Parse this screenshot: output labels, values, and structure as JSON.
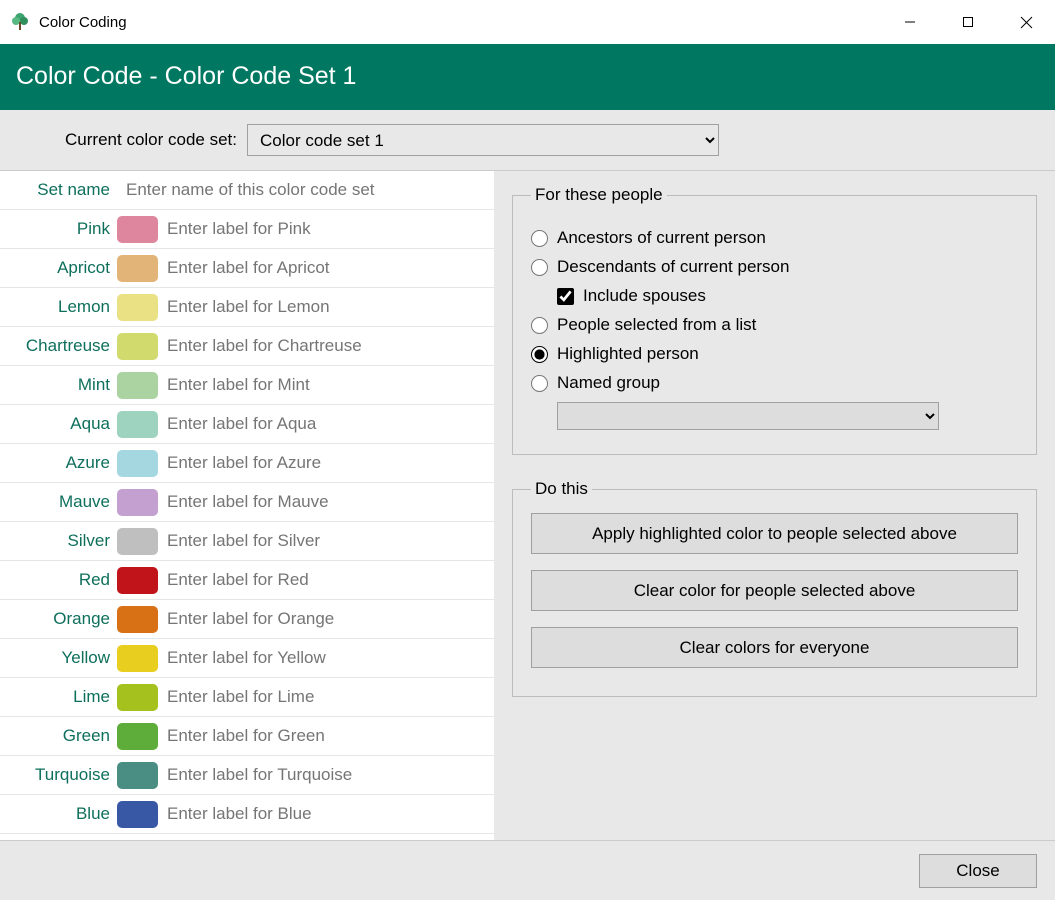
{
  "window": {
    "title": "Color Coding"
  },
  "header": {
    "title": "Color Code - Color Code Set 1"
  },
  "selector": {
    "label": "Current color code set:",
    "value": "Color code set 1"
  },
  "setNameRow": {
    "label": "Set name",
    "placeholder": "Enter name of this color code set"
  },
  "colors": [
    {
      "name": "Pink",
      "hex": "#dd869d",
      "placeholder": "Enter label for Pink"
    },
    {
      "name": "Apricot",
      "hex": "#e3b478",
      "placeholder": "Enter label for Apricot"
    },
    {
      "name": "Lemon",
      "hex": "#e9e183",
      "placeholder": "Enter label for Lemon"
    },
    {
      "name": "Chartreuse",
      "hex": "#d0da6d",
      "placeholder": "Enter label for Chartreuse"
    },
    {
      "name": "Mint",
      "hex": "#abd3a2",
      "placeholder": "Enter label for Mint"
    },
    {
      "name": "Aqua",
      "hex": "#9dd3bf",
      "placeholder": "Enter label for Aqua"
    },
    {
      "name": "Azure",
      "hex": "#a4d7df",
      "placeholder": "Enter label for Azure"
    },
    {
      "name": "Mauve",
      "hex": "#c3a0cf",
      "placeholder": "Enter label for Mauve"
    },
    {
      "name": "Silver",
      "hex": "#bfbfbf",
      "placeholder": "Enter label for Silver"
    },
    {
      "name": "Red",
      "hex": "#c0131a",
      "placeholder": "Enter label for Red"
    },
    {
      "name": "Orange",
      "hex": "#d87116",
      "placeholder": "Enter label for Orange"
    },
    {
      "name": "Yellow",
      "hex": "#e7ce1f",
      "placeholder": "Enter label for Yellow"
    },
    {
      "name": "Lime",
      "hex": "#a5c11e",
      "placeholder": "Enter label for Lime"
    },
    {
      "name": "Green",
      "hex": "#5ead3a",
      "placeholder": "Enter label for Green"
    },
    {
      "name": "Turquoise",
      "hex": "#4a8d82",
      "placeholder": "Enter label for Turquoise"
    },
    {
      "name": "Blue",
      "hex": "#3858a6",
      "placeholder": "Enter label for Blue"
    }
  ],
  "forThesePeople": {
    "legend": "For these people",
    "options": {
      "ancestors": {
        "label": "Ancestors of current person",
        "checked": false
      },
      "descendants": {
        "label": "Descendants of current person",
        "checked": false
      },
      "includeSpouses": {
        "label": "Include spouses",
        "checked": true
      },
      "selectedList": {
        "label": "People selected from a list",
        "checked": false
      },
      "highlighted": {
        "label": "Highlighted person",
        "checked": true
      },
      "namedGroup": {
        "label": "Named group",
        "checked": false
      }
    }
  },
  "doThis": {
    "legend": "Do this",
    "apply": "Apply highlighted color to people selected above",
    "clearSelected": "Clear color for people selected above",
    "clearAll": "Clear colors for everyone"
  },
  "footer": {
    "close": "Close"
  }
}
